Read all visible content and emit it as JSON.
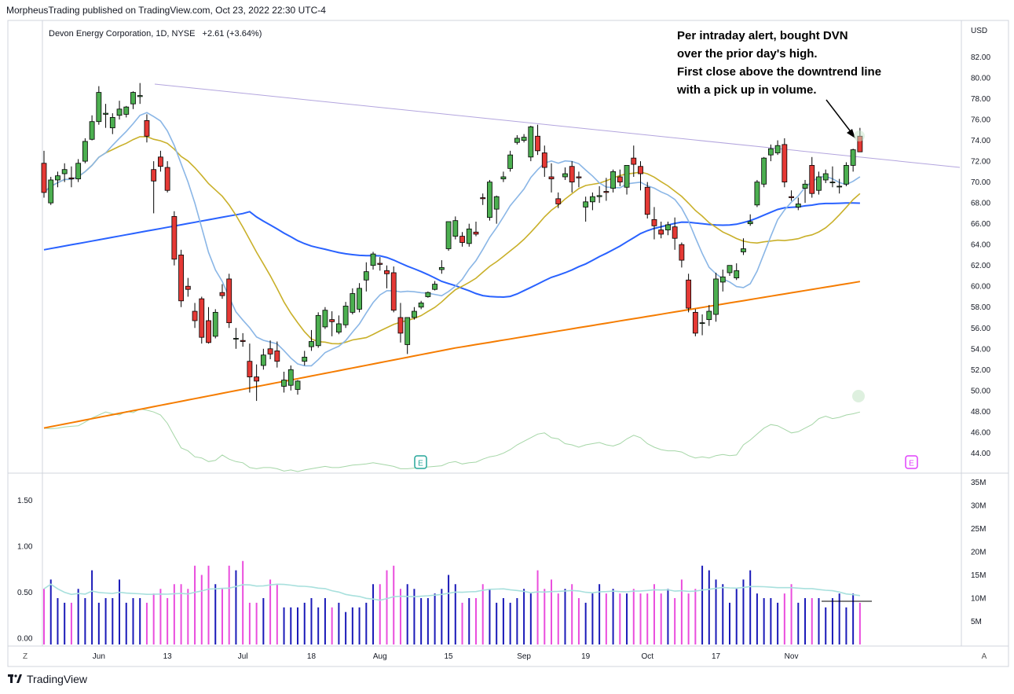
{
  "header": {
    "published": "MorpheusTrading published on TradingView.com, Oct 23, 2022 22:30 UTC-4"
  },
  "legend": {
    "text": "Devon Energy Corporation, 1D, NYSE",
    "change": "+2.61 (+3.64%)"
  },
  "annotation": {
    "lines": [
      "Per intraday alert, bought DVN",
      "over the prior day's high.",
      "First close above the downtrend line",
      "with a pick up in volume."
    ]
  },
  "footer": {
    "brand": "TradingView"
  },
  "corner_buttons": {
    "left": "Z",
    "right": "A"
  },
  "earnings_marker": "E",
  "colors": {
    "up": "#4caf50",
    "down": "#e53935",
    "ma_light_blue": "#8ab6e6",
    "ma_yellow": "#c9b02a",
    "ma_blue": "#2962ff",
    "ma_orange": "#f57c00",
    "trendline": "#b3a5de",
    "rs_line": "#a5d6a7",
    "vol_up": "#1a1ab8",
    "vol_down": "#ea4ddd",
    "vol_ma": "#a8e0dd",
    "earnings": "#26a69a",
    "earnings2": "#e040fb"
  },
  "chart_data": {
    "type": "candlestick",
    "price_axis": {
      "unit": "USD",
      "ticks": [
        "82.00",
        "80.00",
        "78.00",
        "76.00",
        "74.00",
        "72.00",
        "70.00",
        "68.00",
        "66.00",
        "64.00",
        "62.00",
        "60.00",
        "58.00",
        "56.00",
        "54.00",
        "52.00",
        "50.00",
        "48.00",
        "46.00",
        "44.00"
      ]
    },
    "x_ticks": [
      "Jun",
      "13",
      "Jul",
      "18",
      "Aug",
      "15",
      "Sep",
      "19",
      "Oct",
      "17",
      "Nov"
    ],
    "volume_axis": {
      "ticks": [
        "35M",
        "30M",
        "25M",
        "20M",
        "15M",
        "10M",
        "5M"
      ]
    },
    "rs_axis": {
      "ticks": [
        "1.50",
        "1.00",
        "0.50",
        "0.00"
      ]
    },
    "candles": [
      [
        71.8,
        73.0,
        68.5,
        69.0
      ],
      [
        68.0,
        70.5,
        67.8,
        70.2
      ],
      [
        70.2,
        71.0,
        69.5,
        70.6
      ],
      [
        70.8,
        71.8,
        70.0,
        71.2
      ],
      [
        70.4,
        71.5,
        69.5,
        70.3
      ],
      [
        70.3,
        72.2,
        70.0,
        71.8
      ],
      [
        72.0,
        74.2,
        71.8,
        73.9
      ],
      [
        74.1,
        76.4,
        74.0,
        75.8
      ],
      [
        75.8,
        79.2,
        75.5,
        78.6
      ],
      [
        76.5,
        77.5,
        75.2,
        76.6
      ],
      [
        75.2,
        76.6,
        74.6,
        76.2
      ],
      [
        76.4,
        77.8,
        76.0,
        77.0
      ],
      [
        76.5,
        77.3,
        76.2,
        77.2
      ],
      [
        77.5,
        78.7,
        77.0,
        78.6
      ],
      [
        78.2,
        79.5,
        77.5,
        78.3
      ],
      [
        75.9,
        76.5,
        73.8,
        74.4
      ],
      [
        71.2,
        72.0,
        67.0,
        70.1
      ],
      [
        72.4,
        73.0,
        71.0,
        71.5
      ],
      [
        71.4,
        72.0,
        69.0,
        69.2
      ],
      [
        66.7,
        67.2,
        62.0,
        62.6
      ],
      [
        63.0,
        63.5,
        58.0,
        58.6
      ],
      [
        60.0,
        60.8,
        59.0,
        59.7
      ],
      [
        57.6,
        58.4,
        56.0,
        56.7
      ],
      [
        58.8,
        59.0,
        54.5,
        55.1
      ],
      [
        56.7,
        58.0,
        54.5,
        54.6
      ],
      [
        55.2,
        57.8,
        55.0,
        57.5
      ],
      [
        59.4,
        60.2,
        58.8,
        59.1
      ],
      [
        60.7,
        61.2,
        56.0,
        56.5
      ],
      [
        55.0,
        56.0,
        54.0,
        55.0
      ],
      [
        54.8,
        55.5,
        54.2,
        54.7
      ],
      [
        52.8,
        54.5,
        49.8,
        51.3
      ],
      [
        51.3,
        52.5,
        49.0,
        50.9
      ],
      [
        52.4,
        54.0,
        52.0,
        53.4
      ],
      [
        54.0,
        54.8,
        53.0,
        53.5
      ],
      [
        53.8,
        54.7,
        52.2,
        52.8
      ],
      [
        50.4,
        51.8,
        49.8,
        51.0
      ],
      [
        50.5,
        52.4,
        50.0,
        52.0
      ],
      [
        50.1,
        51.0,
        49.6,
        50.9
      ],
      [
        52.8,
        53.8,
        52.4,
        53.2
      ],
      [
        54.2,
        55.8,
        53.8,
        54.7
      ],
      [
        54.3,
        57.5,
        54.1,
        57.2
      ],
      [
        56.1,
        58.0,
        55.9,
        57.7
      ],
      [
        56.8,
        57.6,
        55.2,
        56.6
      ],
      [
        55.6,
        57.2,
        55.4,
        56.4
      ],
      [
        56.3,
        58.5,
        56.0,
        58.1
      ],
      [
        57.5,
        59.8,
        57.3,
        59.3
      ],
      [
        57.8,
        60.3,
        57.5,
        59.8
      ],
      [
        60.6,
        62.3,
        59.5,
        61.4
      ],
      [
        62.0,
        63.3,
        61.6,
        63.1
      ],
      [
        62.2,
        62.8,
        61.5,
        62.1
      ],
      [
        61.5,
        62.0,
        59.8,
        61.2
      ],
      [
        61.3,
        61.9,
        57.5,
        57.7
      ],
      [
        57.0,
        58.4,
        54.6,
        55.5
      ],
      [
        54.4,
        56.9,
        53.5,
        57.0
      ],
      [
        57.0,
        58.0,
        56.8,
        57.6
      ],
      [
        58.0,
        58.6,
        57.8,
        58.4
      ],
      [
        59.0,
        59.5,
        58.9,
        59.4
      ],
      [
        59.7,
        60.5,
        59.6,
        60.2
      ],
      [
        61.6,
        62.5,
        61.2,
        61.8
      ],
      [
        63.6,
        66.2,
        63.4,
        66.2
      ],
      [
        64.8,
        66.7,
        64.5,
        66.3
      ],
      [
        64.8,
        65.2,
        63.8,
        64.2
      ],
      [
        64.1,
        66.0,
        63.8,
        65.5
      ],
      [
        65.2,
        66.2,
        64.8,
        65.0
      ],
      [
        68.5,
        68.9,
        67.8,
        68.4
      ],
      [
        66.6,
        70.2,
        66.3,
        70.0
      ],
      [
        67.4,
        68.7,
        66.0,
        68.6
      ],
      [
        70.3,
        71.0,
        70.0,
        70.5
      ],
      [
        71.3,
        73.0,
        71.0,
        72.6
      ],
      [
        73.8,
        74.5,
        73.6,
        74.2
      ],
      [
        74.0,
        74.6,
        73.8,
        74.3
      ],
      [
        72.4,
        75.4,
        72.0,
        75.3
      ],
      [
        74.4,
        75.5,
        72.6,
        73.0
      ],
      [
        72.8,
        73.5,
        70.5,
        71.4
      ],
      [
        70.5,
        71.8,
        69.0,
        70.3
      ],
      [
        68.4,
        69.0,
        67.5,
        67.9
      ],
      [
        70.5,
        71.4,
        70.2,
        70.8
      ],
      [
        71.5,
        72.0,
        69.0,
        70.0
      ],
      [
        70.5,
        71.0,
        69.5,
        70.4
      ],
      [
        67.6,
        68.6,
        66.2,
        68.1
      ],
      [
        68.1,
        69.0,
        67.3,
        68.6
      ],
      [
        68.6,
        69.6,
        68.0,
        68.7
      ],
      [
        69.1,
        70.4,
        68.2,
        69.0
      ],
      [
        69.4,
        71.2,
        69.0,
        71.0
      ],
      [
        70.5,
        71.2,
        69.6,
        70.0
      ],
      [
        69.5,
        71.5,
        68.8,
        71.6
      ],
      [
        72.3,
        73.5,
        70.5,
        71.7
      ],
      [
        71.5,
        72.0,
        69.2,
        70.8
      ],
      [
        69.5,
        70.0,
        66.5,
        66.9
      ],
      [
        66.4,
        67.6,
        64.5,
        65.8
      ],
      [
        65.4,
        66.2,
        64.6,
        65.0
      ],
      [
        65.4,
        66.2,
        64.9,
        65.9
      ],
      [
        65.7,
        66.6,
        63.5,
        64.6
      ],
      [
        64.0,
        64.2,
        61.8,
        62.5
      ],
      [
        60.6,
        61.2,
        57.5,
        57.9
      ],
      [
        57.5,
        57.8,
        55.2,
        55.5
      ],
      [
        56.5,
        57.3,
        55.3,
        56.5
      ],
      [
        56.8,
        58.2,
        56.2,
        57.6
      ],
      [
        57.3,
        61.3,
        56.6,
        60.7
      ],
      [
        60.4,
        61.6,
        59.5,
        60.9
      ],
      [
        61.3,
        62.0,
        61.0,
        62.0
      ],
      [
        60.8,
        62.2,
        60.6,
        61.5
      ],
      [
        63.3,
        64.6,
        63.0,
        63.6
      ],
      [
        66.0,
        66.9,
        65.8,
        66.2
      ],
      [
        67.8,
        70.2,
        67.6,
        70.0
      ],
      [
        69.8,
        72.4,
        69.5,
        72.3
      ],
      [
        72.6,
        73.6,
        72.0,
        73.2
      ],
      [
        72.8,
        74.0,
        72.6,
        73.5
      ],
      [
        73.6,
        74.2,
        69.5,
        70.0
      ],
      [
        68.6,
        69.2,
        68.2,
        68.5
      ],
      [
        67.6,
        68.5,
        67.3,
        67.9
      ],
      [
        69.4,
        70.2,
        68.0,
        69.8
      ],
      [
        71.6,
        72.4,
        68.5,
        68.9
      ],
      [
        69.2,
        71.0,
        68.8,
        70.5
      ],
      [
        70.2,
        71.2,
        69.9,
        70.8
      ],
      [
        70.0,
        71.5,
        69.5,
        70.0
      ],
      [
        69.6,
        70.3,
        68.9,
        69.6
      ],
      [
        69.8,
        71.9,
        69.6,
        71.6
      ],
      [
        71.6,
        73.2,
        71.0,
        73.1
      ],
      [
        74.4,
        75.2,
        72.9,
        72.9
      ]
    ],
    "volume_millions": [
      12,
      14,
      10,
      9,
      9,
      12,
      10,
      16,
      9,
      10,
      10,
      14,
      9,
      10,
      10,
      9,
      11,
      12,
      10,
      13,
      13,
      12,
      17,
      15,
      17,
      13,
      12,
      17,
      16,
      18,
      9,
      9,
      10,
      14,
      13,
      8,
      8,
      8,
      9,
      10,
      8,
      10,
      8,
      9,
      7,
      8,
      8,
      9,
      13,
      13,
      16,
      17,
      12,
      13,
      12,
      10,
      10,
      11,
      12,
      15,
      13,
      9,
      10,
      10,
      13,
      12,
      9,
      10,
      9,
      10,
      12,
      11,
      16,
      12,
      14,
      11,
      12,
      13,
      10,
      9,
      11,
      13,
      11,
      12,
      11,
      11,
      12,
      11,
      11,
      13,
      11,
      12,
      10,
      14,
      11,
      12,
      17,
      16,
      14,
      13,
      9,
      12,
      14,
      16,
      11,
      10,
      10,
      9,
      11,
      13,
      9,
      10,
      10,
      10,
      8,
      10,
      11,
      8,
      11,
      9
    ],
    "rs_values": [
      0.78,
      0.77,
      0.78,
      0.8,
      0.81,
      0.82,
      0.88,
      0.95,
      1.0,
      1.05,
      1.02,
      1.0,
      1.06,
      1.04,
      1.1,
      1.08,
      1.05,
      1.0,
      0.86,
      0.65,
      0.45,
      0.4,
      0.3,
      0.28,
      0.22,
      0.24,
      0.33,
      0.26,
      0.22,
      0.2,
      0.12,
      0.1,
      0.12,
      0.12,
      0.1,
      0.06,
      0.08,
      0.04,
      0.08,
      0.1,
      0.12,
      0.14,
      0.12,
      0.12,
      0.14,
      0.16,
      0.17,
      0.18,
      0.2,
      0.18,
      0.16,
      0.14,
      0.1,
      0.1,
      0.11,
      0.12,
      0.13,
      0.14,
      0.15,
      0.2,
      0.22,
      0.18,
      0.2,
      0.21,
      0.26,
      0.3,
      0.32,
      0.36,
      0.42,
      0.5,
      0.56,
      0.62,
      0.68,
      0.7,
      0.62,
      0.6,
      0.52,
      0.5,
      0.46,
      0.5,
      0.52,
      0.54,
      0.5,
      0.48,
      0.52,
      0.6,
      0.66,
      0.62,
      0.52,
      0.46,
      0.42,
      0.4,
      0.4,
      0.38,
      0.32,
      0.28,
      0.3,
      0.28,
      0.32,
      0.34,
      0.32,
      0.33,
      0.5,
      0.58,
      0.68,
      0.78,
      0.84,
      0.82,
      0.76,
      0.7,
      0.72,
      0.78,
      0.84,
      0.94,
      0.98,
      0.94,
      0.96,
      1.0,
      1.02,
      1.05
    ]
  }
}
